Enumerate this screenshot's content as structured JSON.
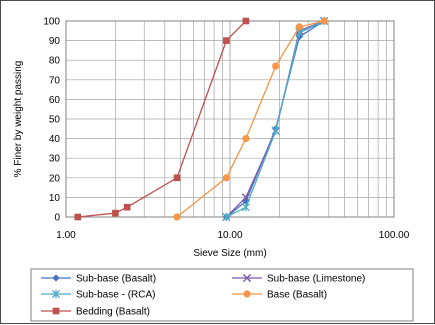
{
  "chart_data": {
    "type": "line",
    "xscale": "log",
    "xlabel": "Sieve Size (mm)",
    "ylabel": "% Finer by weight passing",
    "xlim": [
      1,
      100
    ],
    "ylim": [
      0,
      100
    ],
    "x_ticks": [
      "1.00",
      "10.00",
      "100.00"
    ],
    "y_ticks": [
      "0",
      "10",
      "20",
      "30",
      "40",
      "50",
      "60",
      "70",
      "80",
      "90",
      "100"
    ],
    "grid": true,
    "legend_position": "bottom",
    "series": [
      {
        "name": "Sub-base (Basalt)",
        "color": "#4472C4",
        "marker": "diamond",
        "x": [
          9.5,
          12.5,
          19,
          26.5,
          37.5
        ],
        "y": [
          0,
          8,
          45,
          92,
          100
        ]
      },
      {
        "name": "Sub-base (Limestone)",
        "color": "#7E57A8",
        "marker": "x",
        "x": [
          9.5,
          12.5,
          19,
          26.5,
          37.5
        ],
        "y": [
          0,
          10,
          44,
          95,
          100
        ]
      },
      {
        "name": "Sub-base - (RCA)",
        "color": "#4BACC6",
        "marker": "star",
        "x": [
          9.5,
          12.5,
          19,
          26.5,
          37.5
        ],
        "y": [
          0,
          5,
          44,
          94,
          100
        ]
      },
      {
        "name": "Base (Basalt)",
        "color": "#F79646",
        "marker": "circle",
        "x": [
          4.75,
          9.5,
          12.5,
          19,
          26.5,
          37.5
        ],
        "y": [
          0,
          20,
          40,
          77,
          97,
          100
        ]
      },
      {
        "name": "Bedding (Basalt)",
        "color": "#C0504D",
        "marker": "square",
        "x": [
          1.18,
          2.0,
          2.36,
          4.75,
          9.5,
          12.5
        ],
        "y": [
          0,
          2,
          5,
          20,
          90,
          100
        ]
      }
    ]
  }
}
